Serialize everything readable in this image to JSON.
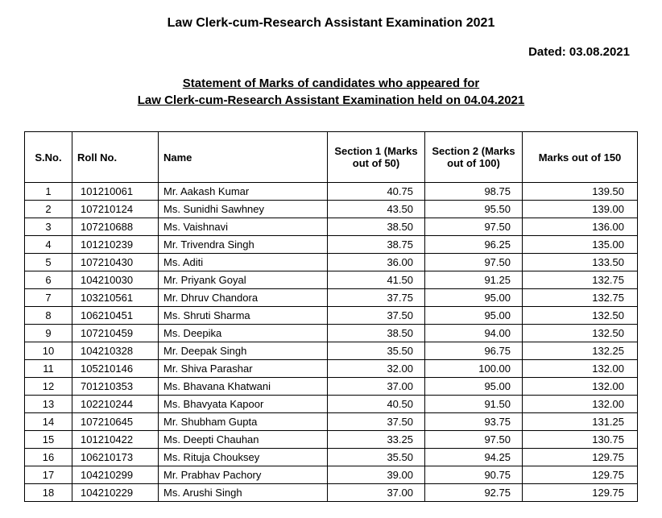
{
  "title": "Law Clerk-cum-Research Assistant Examination 2021",
  "dated_label": "Dated: 03.08.2021",
  "subtitle_line1": "Statement of Marks of candidates who appeared for",
  "subtitle_line2": "Law Clerk-cum-Research Assistant Examination held on 04.04.2021",
  "columns": {
    "sno": "S.No.",
    "roll": "Roll No.",
    "name": "Name",
    "sec1": "Section 1 (Marks out of 50)",
    "sec2": "Section 2 (Marks out of 100)",
    "total": "Marks out of 150"
  },
  "rows": [
    {
      "sno": "1",
      "roll": "101210061",
      "name": "Mr. Aakash Kumar",
      "sec1": "40.75",
      "sec2": "98.75",
      "total": "139.50"
    },
    {
      "sno": "2",
      "roll": "107210124",
      "name": "Ms. Sunidhi Sawhney",
      "sec1": "43.50",
      "sec2": "95.50",
      "total": "139.00"
    },
    {
      "sno": "3",
      "roll": "107210688",
      "name": "Ms. Vaishnavi",
      "sec1": "38.50",
      "sec2": "97.50",
      "total": "136.00"
    },
    {
      "sno": "4",
      "roll": "101210239",
      "name": "Mr. Trivendra Singh",
      "sec1": "38.75",
      "sec2": "96.25",
      "total": "135.00"
    },
    {
      "sno": "5",
      "roll": "107210430",
      "name": "Ms. Aditi",
      "sec1": "36.00",
      "sec2": "97.50",
      "total": "133.50"
    },
    {
      "sno": "6",
      "roll": "104210030",
      "name": "Mr. Priyank Goyal",
      "sec1": "41.50",
      "sec2": "91.25",
      "total": "132.75"
    },
    {
      "sno": "7",
      "roll": "103210561",
      "name": "Mr. Dhruv Chandora",
      "sec1": "37.75",
      "sec2": "95.00",
      "total": "132.75"
    },
    {
      "sno": "8",
      "roll": "106210451",
      "name": "Ms. Shruti Sharma",
      "sec1": "37.50",
      "sec2": "95.00",
      "total": "132.50"
    },
    {
      "sno": "9",
      "roll": "107210459",
      "name": "Ms. Deepika",
      "sec1": "38.50",
      "sec2": "94.00",
      "total": "132.50"
    },
    {
      "sno": "10",
      "roll": "104210328",
      "name": "Mr. Deepak Singh",
      "sec1": "35.50",
      "sec2": "96.75",
      "total": "132.25"
    },
    {
      "sno": "11",
      "roll": "105210146",
      "name": "Mr. Shiva Parashar",
      "sec1": "32.00",
      "sec2": "100.00",
      "total": "132.00"
    },
    {
      "sno": "12",
      "roll": "701210353",
      "name": "Ms. Bhavana Khatwani",
      "sec1": "37.00",
      "sec2": "95.00",
      "total": "132.00"
    },
    {
      "sno": "13",
      "roll": "102210244",
      "name": "Ms. Bhavyata Kapoor",
      "sec1": "40.50",
      "sec2": "91.50",
      "total": "132.00"
    },
    {
      "sno": "14",
      "roll": "107210645",
      "name": "Mr. Shubham Gupta",
      "sec1": "37.50",
      "sec2": "93.75",
      "total": "131.25"
    },
    {
      "sno": "15",
      "roll": "101210422",
      "name": "Ms. Deepti Chauhan",
      "sec1": "33.25",
      "sec2": "97.50",
      "total": "130.75"
    },
    {
      "sno": "16",
      "roll": "106210173",
      "name": "Ms. Rituja Chouksey",
      "sec1": "35.50",
      "sec2": "94.25",
      "total": "129.75"
    },
    {
      "sno": "17",
      "roll": "104210299",
      "name": "Mr. Prabhav Pachory",
      "sec1": "39.00",
      "sec2": "90.75",
      "total": "129.75"
    },
    {
      "sno": "18",
      "roll": "104210229",
      "name": "Ms. Arushi Singh",
      "sec1": "37.00",
      "sec2": "92.75",
      "total": "129.75"
    }
  ]
}
